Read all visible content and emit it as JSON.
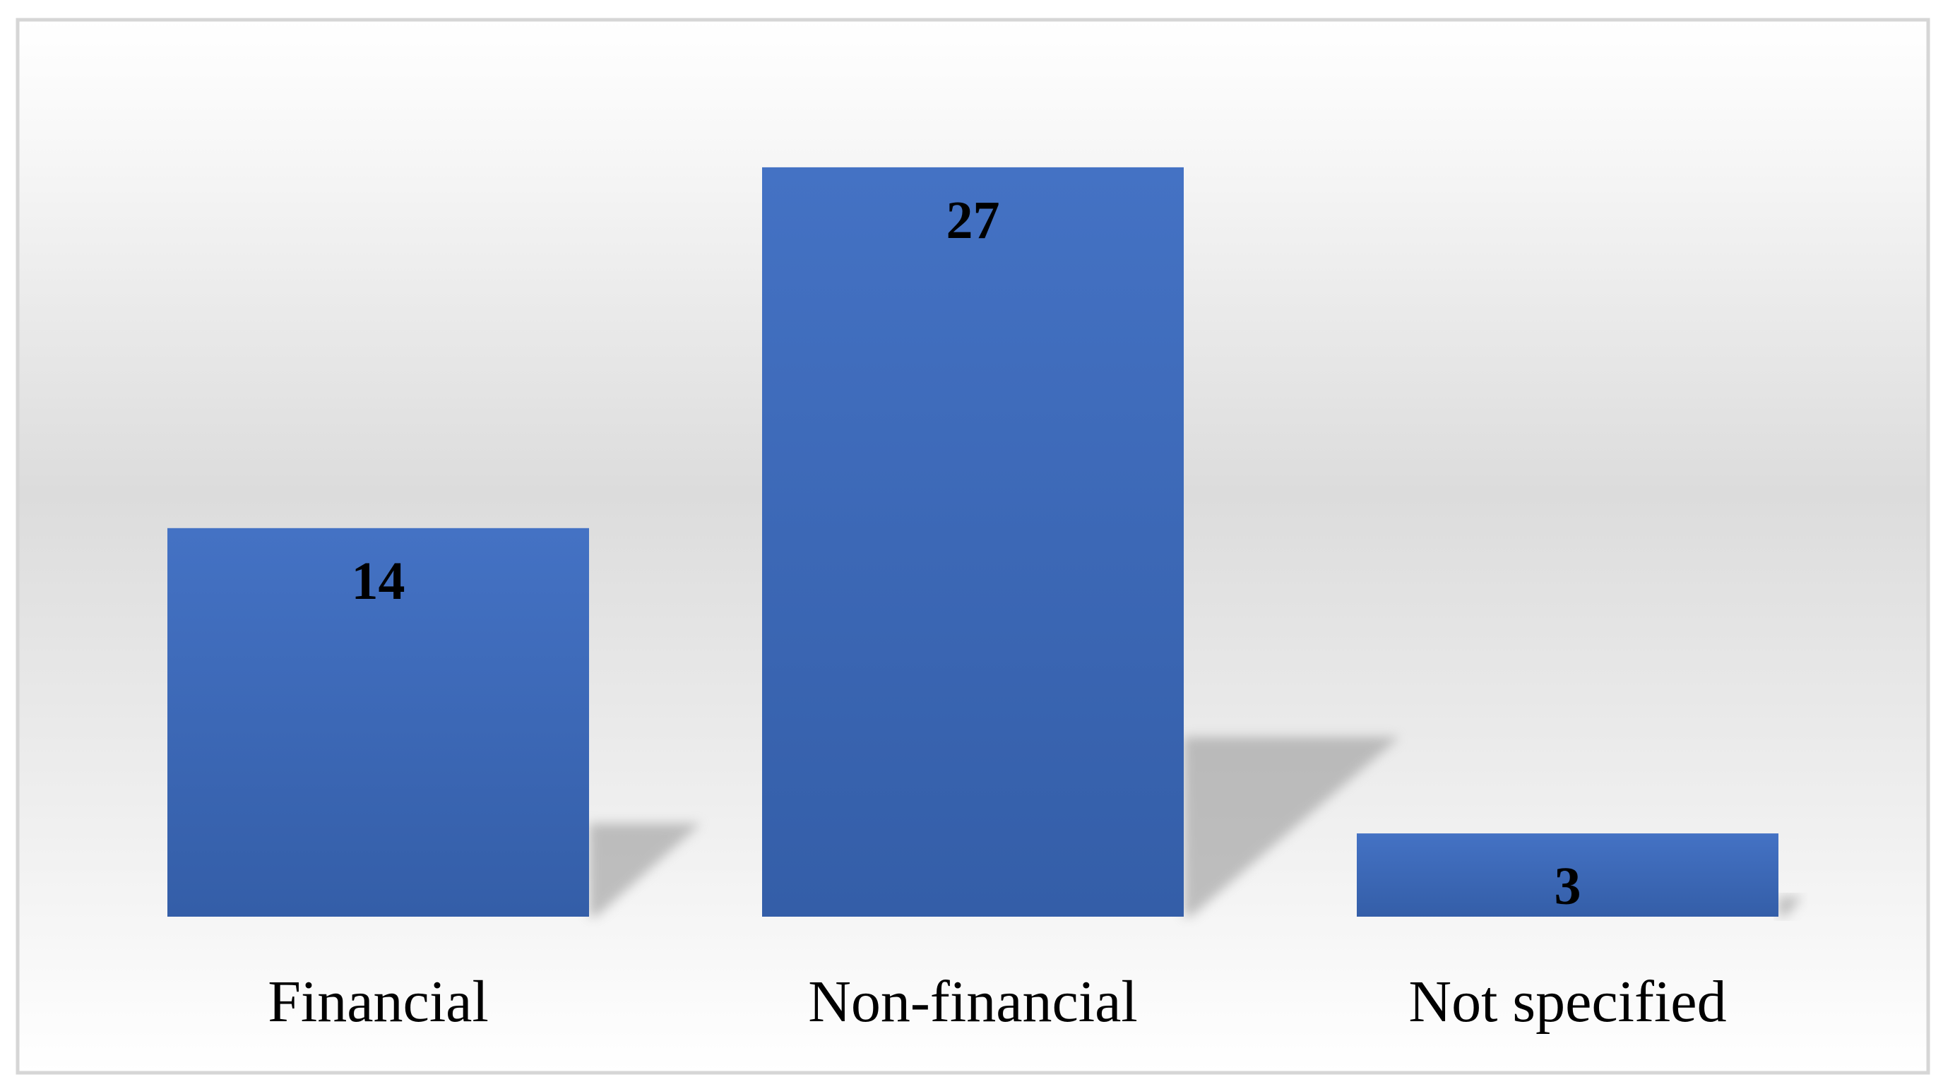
{
  "chart_data": {
    "type": "bar",
    "categories": [
      "Financial",
      "Non-financial",
      "Not specified"
    ],
    "values": [
      14,
      27,
      3
    ],
    "color": "#4472c4"
  }
}
